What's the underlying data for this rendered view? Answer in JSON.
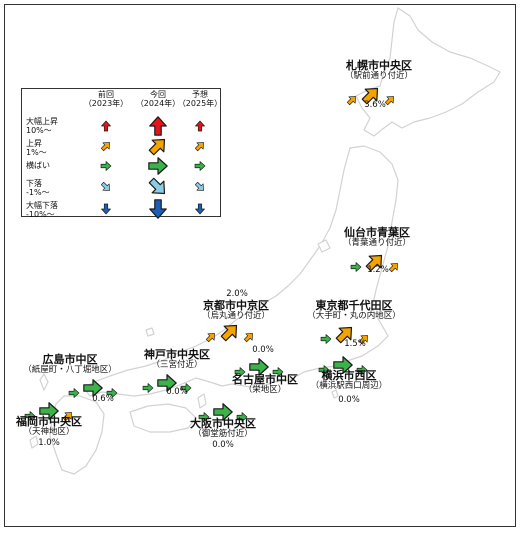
{
  "legend": {
    "columns": [
      {
        "label": "前回",
        "sub": "（2023年）"
      },
      {
        "label": "今回",
        "sub": "（2024年）"
      },
      {
        "label": "予想",
        "sub": "（2025年）"
      }
    ],
    "rows": [
      {
        "label": "大幅上昇",
        "sub": "10%〜",
        "level": "sharp-rise",
        "color": "#e3141b"
      },
      {
        "label": "上昇",
        "sub": "1%〜",
        "level": "rise",
        "color": "#f4a300"
      },
      {
        "label": "横ばい",
        "sub": "",
        "level": "flat",
        "color": "#3bb34a"
      },
      {
        "label": "下落",
        "sub": "-1%〜",
        "level": "decline",
        "color": "#8ccbe6"
      },
      {
        "label": "大幅下落",
        "sub": "-10%〜",
        "level": "sharp-decline",
        "color": "#1c5fb8"
      }
    ]
  },
  "locations": [
    {
      "name": "札幌市中央区",
      "sub": "（駅前通り付近）",
      "rate": "3.6%",
      "trend": [
        "rise",
        "rise",
        "rise"
      ]
    },
    {
      "name": "仙台市青葉区",
      "sub": "（青葉通り付近）",
      "rate": "1.2%",
      "trend": [
        "flat",
        "rise",
        "rise"
      ]
    },
    {
      "name": "京都市中京区",
      "sub": "（烏丸通り付近）",
      "rate": "2.0%",
      "trend": [
        "rise",
        "rise",
        "rise"
      ]
    },
    {
      "name": "東京都千代田区",
      "sub": "（大手町・丸の内地区）",
      "rate": "1.5%",
      "trend": [
        "flat",
        "rise",
        "rise"
      ]
    },
    {
      "name": "広島市中区",
      "sub": "（紙屋町・八丁堀地区）",
      "rate": "0.6%",
      "trend": [
        "flat",
        "flat",
        "flat"
      ]
    },
    {
      "name": "神戸市中央区",
      "sub": "（三宮付近）",
      "rate": "0.0%",
      "trend": [
        "flat",
        "flat",
        "flat"
      ]
    },
    {
      "name": "名古屋市中区",
      "sub": "（栄地区）",
      "rate": "0.0%",
      "trend": [
        "flat",
        "flat",
        "flat"
      ]
    },
    {
      "name": "横浜市西区",
      "sub": "（横浜駅西口周辺）",
      "rate": "0.0%",
      "trend": [
        "flat",
        "flat",
        "flat"
      ]
    },
    {
      "name": "福岡市中央区",
      "sub": "（天神地区）",
      "rate": "1.0%",
      "trend": [
        "flat",
        "flat",
        "rise"
      ]
    },
    {
      "name": "大阪市中央区",
      "sub": "（御堂筋付近）",
      "rate": "0.0%",
      "trend": [
        "flat",
        "flat",
        "flat"
      ]
    }
  ]
}
